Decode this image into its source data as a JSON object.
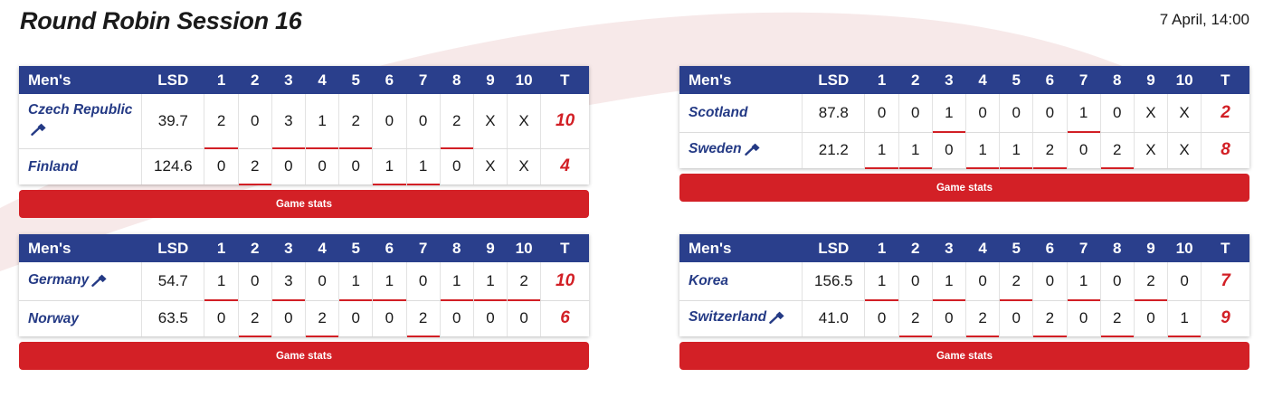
{
  "page": {
    "title": "Round Robin Session 16",
    "date": "7 April, 14:00"
  },
  "colors": {
    "header_bg": "#2a3f8c",
    "accent_red": "#d21f25",
    "team_blue": "#243a85"
  },
  "icons": {
    "hammer": "hammer-icon"
  },
  "headers": [
    "Men's",
    "LSD",
    "1",
    "2",
    "3",
    "4",
    "5",
    "6",
    "7",
    "8",
    "9",
    "10",
    "T"
  ],
  "games": [
    {
      "category": "Men's",
      "stats_label": "Game stats",
      "teams": [
        {
          "name": "Czech Republic",
          "hammer": true,
          "lsd": "39.7",
          "ends": [
            "2",
            "0",
            "3",
            "1",
            "2",
            "0",
            "0",
            "2",
            "X",
            "X"
          ],
          "total": "10"
        },
        {
          "name": "Finland",
          "hammer": false,
          "lsd": "124.6",
          "ends": [
            "0",
            "2",
            "0",
            "0",
            "0",
            "1",
            "1",
            "0",
            "X",
            "X"
          ],
          "total": "4"
        }
      ]
    },
    {
      "category": "Men's",
      "stats_label": "Game stats",
      "teams": [
        {
          "name": "Scotland",
          "hammer": false,
          "lsd": "87.8",
          "ends": [
            "0",
            "0",
            "1",
            "0",
            "0",
            "0",
            "1",
            "0",
            "X",
            "X"
          ],
          "total": "2"
        },
        {
          "name": "Sweden",
          "hammer": true,
          "lsd": "21.2",
          "ends": [
            "1",
            "1",
            "0",
            "1",
            "1",
            "2",
            "0",
            "2",
            "X",
            "X"
          ],
          "total": "8"
        }
      ]
    },
    {
      "category": "Men's",
      "stats_label": "Game stats",
      "teams": [
        {
          "name": "Germany",
          "hammer": true,
          "lsd": "54.7",
          "ends": [
            "1",
            "0",
            "3",
            "0",
            "1",
            "1",
            "0",
            "1",
            "1",
            "2"
          ],
          "total": "10"
        },
        {
          "name": "Norway",
          "hammer": false,
          "lsd": "63.5",
          "ends": [
            "0",
            "2",
            "0",
            "2",
            "0",
            "0",
            "2",
            "0",
            "0",
            "0"
          ],
          "total": "6"
        }
      ]
    },
    {
      "category": "Men's",
      "stats_label": "Game stats",
      "teams": [
        {
          "name": "Korea",
          "hammer": false,
          "lsd": "156.5",
          "ends": [
            "1",
            "0",
            "1",
            "0",
            "2",
            "0",
            "1",
            "0",
            "2",
            "0"
          ],
          "total": "7"
        },
        {
          "name": "Switzerland",
          "hammer": true,
          "lsd": "41.0",
          "ends": [
            "0",
            "2",
            "0",
            "2",
            "0",
            "2",
            "0",
            "2",
            "0",
            "1"
          ],
          "total": "9"
        }
      ]
    }
  ]
}
